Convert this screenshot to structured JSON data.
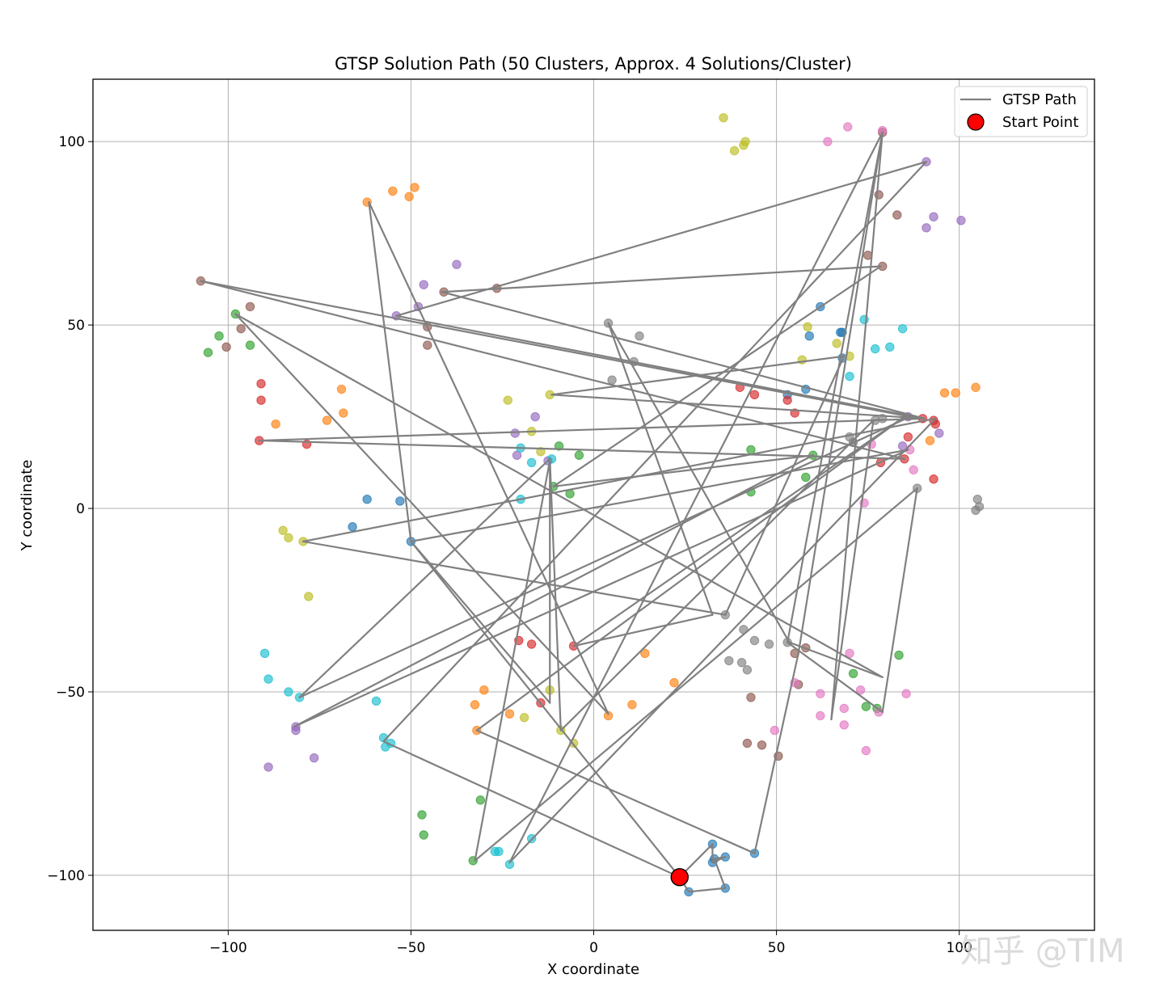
{
  "chart_data": {
    "type": "scatter",
    "title": "GTSP Solution Path (50 Clusters, Approx. 4 Solutions/Cluster)",
    "xlabel": "X coordinate",
    "ylabel": "Y coordinate",
    "xlim": [
      -137,
      137
    ],
    "ylim": [
      -115,
      117
    ],
    "xticks": [
      -100,
      -50,
      0,
      50,
      100
    ],
    "yticks": [
      -100,
      -50,
      0,
      50,
      100
    ],
    "xtick_labels": [
      "−100",
      "−50",
      "0",
      "50",
      "100"
    ],
    "ytick_labels": [
      "−100",
      "−50",
      "0",
      "50",
      "100"
    ],
    "grid": true,
    "legend": {
      "position": "top-right",
      "entries": [
        {
          "label": "GTSP Path",
          "kind": "line",
          "color": "#808080"
        },
        {
          "label": "Start Point",
          "kind": "marker",
          "color": "#ff0000"
        }
      ]
    },
    "palette": [
      "#1f77b4",
      "#ff7f0e",
      "#2ca02c",
      "#d62728",
      "#9467bd",
      "#8c564b",
      "#e377c2",
      "#7f7f7f",
      "#bcbd22",
      "#17becf"
    ],
    "path_color": "#808080",
    "start_point": [
      23.5,
      -100.5
    ],
    "points": [
      [
        32.5,
        -91.5,
        0
      ],
      [
        33,
        -95.5,
        0
      ],
      [
        36,
        -95,
        0
      ],
      [
        26,
        -104.5,
        0
      ],
      [
        36,
        -103.5,
        0
      ],
      [
        32.5,
        -96.5,
        0
      ],
      [
        44,
        -94,
        0
      ],
      [
        -62,
        2.5,
        0
      ],
      [
        -53,
        2,
        0
      ],
      [
        -66,
        -5,
        0
      ],
      [
        -50,
        -9,
        0
      ],
      [
        62,
        55,
        0
      ],
      [
        59,
        47,
        0
      ],
      [
        68,
        48,
        0
      ],
      [
        58,
        32.5,
        0
      ],
      [
        53,
        31,
        0
      ],
      [
        67.5,
        48,
        0
      ],
      [
        68,
        41,
        0
      ],
      [
        -62,
        83.5,
        1
      ],
      [
        -55,
        86.5,
        1
      ],
      [
        -50.5,
        85,
        1
      ],
      [
        -49,
        87.5,
        1
      ],
      [
        -69,
        32.5,
        1
      ],
      [
        -68.5,
        26,
        1
      ],
      [
        -73,
        24,
        1
      ],
      [
        -87,
        23,
        1
      ],
      [
        -30,
        -49.5,
        1
      ],
      [
        -32.5,
        -53.5,
        1
      ],
      [
        -23,
        -56,
        1
      ],
      [
        -32,
        -60.5,
        1
      ],
      [
        4,
        -56.5,
        1
      ],
      [
        10.5,
        -53.5,
        1
      ],
      [
        22,
        -47.5,
        1
      ],
      [
        14,
        -39.5,
        1
      ],
      [
        104.5,
        33,
        1
      ],
      [
        99,
        31.5,
        1
      ],
      [
        96,
        31.5,
        1
      ],
      [
        92,
        18.5,
        1
      ],
      [
        -105.5,
        42.5,
        2
      ],
      [
        -102.5,
        47,
        2
      ],
      [
        -98,
        53,
        2
      ],
      [
        -94,
        44.5,
        2
      ],
      [
        -11,
        6,
        2
      ],
      [
        -6.5,
        4,
        2
      ],
      [
        -9.5,
        17,
        2
      ],
      [
        -4,
        14.5,
        2
      ],
      [
        43,
        16,
        2
      ],
      [
        43,
        4.5,
        2
      ],
      [
        60,
        14.5,
        2
      ],
      [
        58,
        8.5,
        2
      ],
      [
        -47,
        -83.5,
        2
      ],
      [
        -46.5,
        -89,
        2
      ],
      [
        -31,
        -79.5,
        2
      ],
      [
        -33,
        -96,
        2
      ],
      [
        71,
        -45,
        2
      ],
      [
        74.5,
        -54,
        2
      ],
      [
        83.5,
        -40,
        2
      ],
      [
        77.5,
        -54.5,
        2
      ],
      [
        -91,
        34,
        3
      ],
      [
        -91,
        29.5,
        3
      ],
      [
        -91.5,
        18.5,
        3
      ],
      [
        -78.5,
        17.5,
        3
      ],
      [
        -20.5,
        -36,
        3
      ],
      [
        -17,
        -37,
        3
      ],
      [
        -14.5,
        -53,
        3
      ],
      [
        -5.5,
        -37.5,
        3
      ],
      [
        40,
        33,
        3
      ],
      [
        44,
        31,
        3
      ],
      [
        53,
        29.5,
        3
      ],
      [
        55,
        26,
        3
      ],
      [
        86,
        19.5,
        3
      ],
      [
        85,
        13.5,
        3
      ],
      [
        78.5,
        12.5,
        3
      ],
      [
        93,
        8,
        3
      ],
      [
        90,
        24.5,
        3
      ],
      [
        93,
        24,
        3
      ],
      [
        93.5,
        23,
        3
      ],
      [
        -37.5,
        66.5,
        4
      ],
      [
        -46.5,
        61,
        4
      ],
      [
        -48,
        55,
        4
      ],
      [
        -54,
        52.5,
        4
      ],
      [
        -21.5,
        20.5,
        4
      ],
      [
        -21,
        14.5,
        4
      ],
      [
        -16,
        25,
        4
      ],
      [
        -12.5,
        13,
        4
      ],
      [
        -81.5,
        -59.5,
        4
      ],
      [
        -81.5,
        -60.5,
        4
      ],
      [
        -89,
        -70.5,
        4
      ],
      [
        -76.5,
        -68,
        4
      ],
      [
        91,
        76.5,
        4
      ],
      [
        93,
        79.5,
        4
      ],
      [
        100.5,
        78.5,
        4
      ],
      [
        91,
        94.5,
        4
      ],
      [
        86,
        25,
        4
      ],
      [
        84.5,
        17,
        4
      ],
      [
        94.5,
        20.5,
        4
      ],
      [
        -107.5,
        62,
        5
      ],
      [
        -100.5,
        44,
        5
      ],
      [
        -96.5,
        49,
        5
      ],
      [
        -94,
        55,
        5
      ],
      [
        -26.5,
        60,
        5
      ],
      [
        -41,
        59,
        5
      ],
      [
        -45.5,
        49.5,
        5
      ],
      [
        -45.5,
        44.5,
        5
      ],
      [
        79,
        66,
        5
      ],
      [
        78,
        85.5,
        5
      ],
      [
        83,
        80,
        5
      ],
      [
        75,
        69,
        5
      ],
      [
        43,
        -51.5,
        5
      ],
      [
        42,
        -64,
        5
      ],
      [
        46,
        -64.5,
        5
      ],
      [
        50.5,
        -67.5,
        5
      ],
      [
        58,
        -38,
        5
      ],
      [
        55,
        -39.5,
        5
      ],
      [
        56,
        -48,
        5
      ],
      [
        79,
        102.5,
        5
      ],
      [
        64,
        100,
        6
      ],
      [
        69.5,
        104,
        6
      ],
      [
        79,
        103,
        6
      ],
      [
        70,
        -39.5,
        6
      ],
      [
        73,
        -49.5,
        6
      ],
      [
        68.5,
        -59,
        6
      ],
      [
        68.5,
        -54.5,
        6
      ],
      [
        62,
        -50.5,
        6
      ],
      [
        62,
        -56.5,
        6
      ],
      [
        55,
        -47.5,
        6
      ],
      [
        78,
        -55.5,
        6
      ],
      [
        74.5,
        -66,
        6
      ],
      [
        49.5,
        -60.5,
        6
      ],
      [
        74,
        1.5,
        6
      ],
      [
        87.5,
        10.5,
        6
      ],
      [
        85.5,
        -50.5,
        6
      ],
      [
        86.5,
        16,
        6
      ],
      [
        76,
        17.5,
        6
      ],
      [
        4,
        50.5,
        7
      ],
      [
        5,
        35,
        7
      ],
      [
        11,
        40,
        7
      ],
      [
        12.5,
        47,
        7
      ],
      [
        36,
        -29,
        7
      ],
      [
        41,
        -33,
        7
      ],
      [
        44,
        -36,
        7
      ],
      [
        48,
        -37,
        7
      ],
      [
        37,
        -41.5,
        7
      ],
      [
        40.5,
        -42,
        7
      ],
      [
        42,
        -44,
        7
      ],
      [
        53,
        -36.5,
        7
      ],
      [
        77,
        24,
        7
      ],
      [
        79,
        24.5,
        7
      ],
      [
        70,
        19.5,
        7
      ],
      [
        71,
        18,
        7
      ],
      [
        105,
        2.5,
        7
      ],
      [
        105.5,
        0.5,
        7
      ],
      [
        104.5,
        -0.5,
        7
      ],
      [
        88.5,
        5.5,
        7
      ],
      [
        35.5,
        106.5,
        8
      ],
      [
        38.5,
        97.5,
        8
      ],
      [
        41,
        99,
        8
      ],
      [
        41.5,
        100,
        8
      ],
      [
        -23.5,
        29.5,
        8
      ],
      [
        -12,
        31,
        8
      ],
      [
        -17,
        21,
        8
      ],
      [
        -14.5,
        15.5,
        8
      ],
      [
        -85,
        -6,
        8
      ],
      [
        -83.5,
        -8,
        8
      ],
      [
        -79.5,
        -9,
        8
      ],
      [
        -78,
        -24,
        8
      ],
      [
        -12,
        -49.5,
        8
      ],
      [
        -19,
        -57,
        8
      ],
      [
        -9,
        -60.5,
        8
      ],
      [
        -5.5,
        -64,
        8
      ],
      [
        58.5,
        49.5,
        8
      ],
      [
        57,
        40.5,
        8
      ],
      [
        66.5,
        45,
        8
      ],
      [
        70,
        41.5,
        8
      ],
      [
        -90,
        -39.5,
        9
      ],
      [
        -89,
        -46.5,
        9
      ],
      [
        -83.5,
        -50,
        9
      ],
      [
        -80.5,
        -51.5,
        9
      ],
      [
        -59.5,
        -52.5,
        9
      ],
      [
        -57.5,
        -62.5,
        9
      ],
      [
        -57,
        -65,
        9
      ],
      [
        -55.5,
        -64,
        9
      ],
      [
        -27,
        -93.5,
        9
      ],
      [
        -26,
        -93.5,
        9
      ],
      [
        -23,
        -97,
        9
      ],
      [
        -17,
        -90,
        9
      ],
      [
        -20,
        16.5,
        9
      ],
      [
        -17,
        12.5,
        9
      ],
      [
        -20,
        2.5,
        9
      ],
      [
        -11.5,
        13.5,
        9
      ],
      [
        74,
        51.5,
        9
      ],
      [
        77,
        43.5,
        9
      ],
      [
        81,
        44,
        9
      ],
      [
        84.5,
        49,
        9
      ],
      [
        70,
        36,
        9
      ]
    ],
    "path": [
      [
        23.5,
        -100.5
      ],
      [
        26,
        -104.5
      ],
      [
        36,
        -103.5
      ],
      [
        33,
        -95.5
      ],
      [
        36,
        -95
      ],
      [
        32.5,
        -96.5
      ],
      [
        32.5,
        -91.5
      ],
      [
        23.5,
        -100.5
      ],
      [
        -50,
        -9
      ],
      [
        -12,
        -53
      ],
      [
        -12,
        13
      ],
      [
        -32.5,
        -96
      ],
      [
        88.5,
        5.5
      ],
      [
        79,
        -55.5
      ],
      [
        53,
        -36.5
      ],
      [
        79,
        102.5
      ],
      [
        65,
        -57.5
      ],
      [
        76.5,
        24
      ],
      [
        -9,
        -60.5
      ],
      [
        -12,
        13.5
      ],
      [
        -80.5,
        -51.5
      ],
      [
        86.5,
        25
      ],
      [
        -107.5,
        62
      ],
      [
        85,
        13.5
      ],
      [
        -91.5,
        18.5
      ],
      [
        90.5,
        24.5
      ],
      [
        -41.5,
        59
      ],
      [
        78.5,
        66
      ],
      [
        -11,
        6
      ],
      [
        60,
        14.5
      ],
      [
        -82,
        -59.5
      ],
      [
        86,
        16
      ],
      [
        -50,
        -9
      ],
      [
        -61.5,
        83.5
      ],
      [
        4,
        -56
      ],
      [
        -98,
        53
      ],
      [
        79,
        -46
      ],
      [
        53.5,
        -36.5
      ],
      [
        4,
        50.5
      ],
      [
        32.5,
        -29
      ],
      [
        -5.5,
        -37.5
      ],
      [
        85,
        25
      ],
      [
        -32,
        -60.5
      ],
      [
        44,
        -94
      ],
      [
        56,
        -39.5
      ],
      [
        79,
        102.5
      ],
      [
        -23,
        -96.5
      ],
      [
        93.5,
        24.5
      ],
      [
        -79.5,
        -9
      ],
      [
        36,
        -29
      ],
      [
        68.5,
        41.5
      ],
      [
        -11.5,
        31
      ],
      [
        90.5,
        24.5
      ],
      [
        -54,
        52.5
      ],
      [
        91,
        94.5
      ],
      [
        -57.5,
        -63.5
      ],
      [
        23.5,
        -100.5
      ]
    ]
  }
}
